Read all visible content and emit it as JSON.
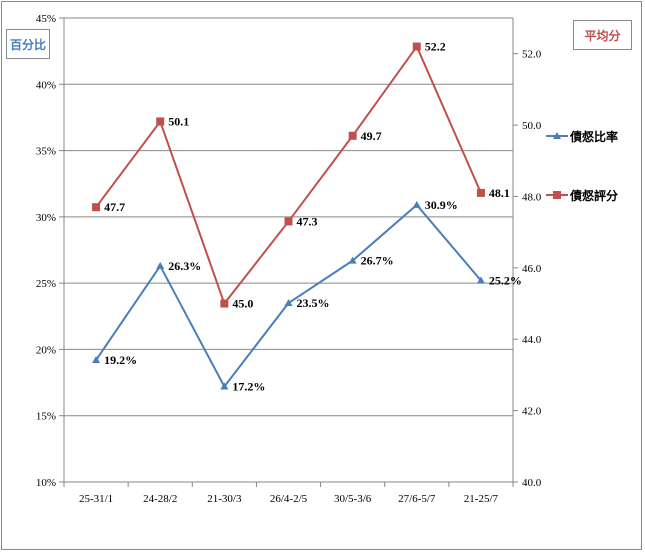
{
  "chart_data": {
    "type": "line",
    "categories": [
      "25-31/1",
      "24-28/2",
      "21-30/3",
      "26/4-2/5",
      "30/5-3/6",
      "27/6-5/7",
      "21-25/7"
    ],
    "series": [
      {
        "name": "債惄比率",
        "axis": "left",
        "color": "#4a7ebb",
        "marker": "triangle",
        "values": [
          19.2,
          26.3,
          17.2,
          23.5,
          26.7,
          30.9,
          25.2
        ],
        "labels": [
          "19.2%",
          "26.3%",
          "17.2%",
          "23.5%",
          "26.7%",
          "30.9%",
          "25.2%"
        ]
      },
      {
        "name": "債惄評分",
        "axis": "right",
        "color": "#c0504d",
        "marker": "square",
        "values": [
          47.7,
          50.1,
          45.0,
          47.3,
          49.7,
          52.2,
          48.1
        ],
        "labels": [
          "47.7",
          "50.1",
          "45.0",
          "47.3",
          "49.7",
          "52.2",
          "48.1"
        ]
      }
    ],
    "left_axis": {
      "title": "百分比",
      "ylim": [
        10,
        45
      ],
      "ticks": [
        10,
        15,
        20,
        25,
        30,
        35,
        40,
        45
      ],
      "tick_labels": [
        "10%",
        "15%",
        "20%",
        "25%",
        "30%",
        "35%",
        "40%",
        "45%"
      ]
    },
    "right_axis": {
      "title": "平均分",
      "ylim": [
        40,
        53
      ],
      "ticks": [
        40,
        42,
        44,
        46,
        48,
        50,
        52
      ],
      "tick_labels": [
        "40.0",
        "42.0",
        "44.0",
        "46.0",
        "48.0",
        "50.0",
        "52.0"
      ]
    },
    "grid": true,
    "legend": "right"
  }
}
